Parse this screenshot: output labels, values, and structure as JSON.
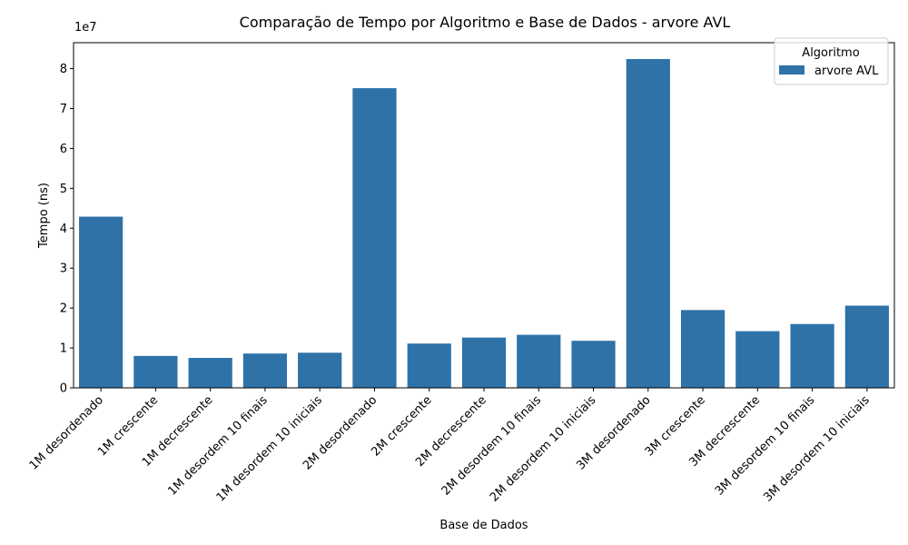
{
  "chart_data": {
    "type": "bar",
    "title": "Comparação de Tempo por Algoritmo e Base de Dados - arvore AVL",
    "xlabel": "Base de Dados",
    "ylabel": "Tempo (ns)",
    "scale_label": "1e7",
    "ylim": [
      0,
      8.65
    ],
    "yticks": [
      0,
      1,
      2,
      3,
      4,
      5,
      6,
      7,
      8
    ],
    "grid": false,
    "bar_color": "#2e72a8",
    "legend": {
      "title": "Algoritmo",
      "placement": "top-right",
      "entries": [
        "arvore AVL"
      ]
    },
    "categories": [
      "1M desordenado",
      "1M crescente",
      "1M decrescente",
      "1M desordem 10 finais",
      "1M desordem 10 iniciais",
      "2M desordenado",
      "2M crescente",
      "2M decrescente",
      "2M desordem 10 finais",
      "2M desordem 10 iniciais",
      "3M desordenado",
      "3M crescente",
      "3M decrescente",
      "3M desordem 10 finais",
      "3M desordem 10 iniciais"
    ],
    "series": [
      {
        "name": "arvore AVL",
        "values": [
          4.29,
          0.8,
          0.75,
          0.86,
          0.88,
          7.51,
          1.11,
          1.26,
          1.33,
          1.18,
          8.24,
          1.95,
          1.42,
          1.6,
          2.06
        ]
      }
    ]
  }
}
